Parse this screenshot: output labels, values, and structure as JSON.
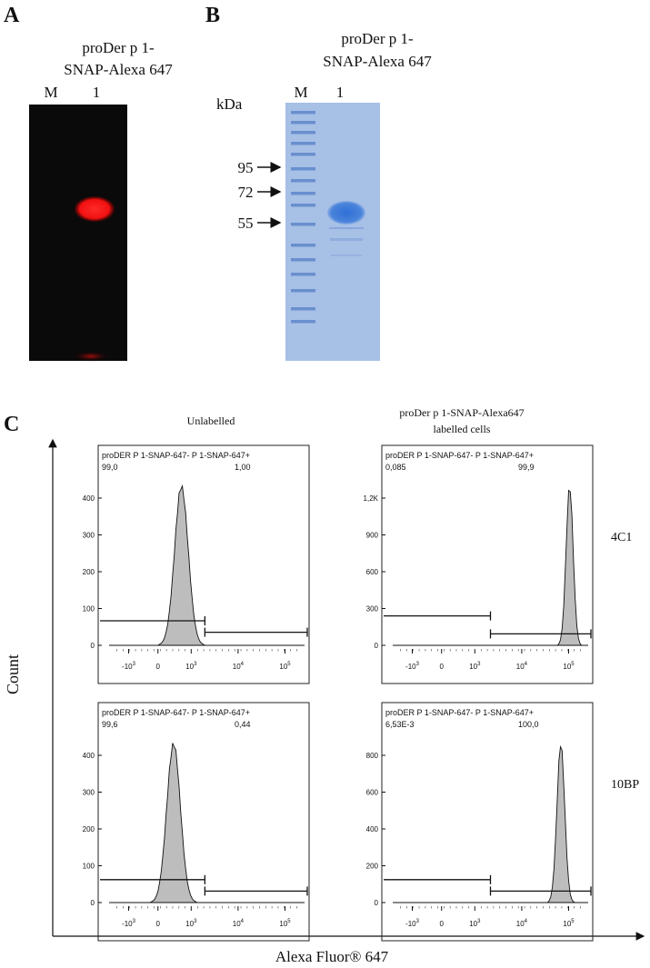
{
  "panel_a": {
    "label": "A",
    "title": [
      "proDer p 1-",
      "SNAP-Alexa 647"
    ],
    "lanes": [
      "M",
      "1"
    ]
  },
  "panel_b": {
    "label": "B",
    "title": [
      "proDer p 1-",
      "SNAP-Alexa 647"
    ],
    "lanes": [
      "M",
      "1"
    ],
    "unit": "kDa",
    "markers": [
      "95",
      "72",
      "55"
    ]
  },
  "panel_c": {
    "label": "C",
    "y_label": "Count",
    "x_label": "Alexa Fluor® 647",
    "columns": [
      [
        "Unlabelled"
      ],
      [
        "proDer p 1-SNAP-Alexa647",
        "labelled cells"
      ]
    ],
    "rows": [
      "4C1",
      "10BP"
    ],
    "x_ticks": [
      {
        "base": "-10",
        "exp": "3"
      },
      {
        "base": "0"
      },
      {
        "base": "10",
        "exp": "3"
      },
      {
        "base": "10",
        "exp": "4"
      },
      {
        "base": "10",
        "exp": "5"
      }
    ],
    "plots": [
      {
        "gate_header": "proDER P 1-SNAP-647- P 1-SNAP-647+",
        "left_pct": "99,0",
        "right_pct": "1,00",
        "y_ticks": [
          "0",
          "100",
          "200",
          "300",
          "400"
        ]
      },
      {
        "gate_header": "proDER P 1-SNAP-647- P 1-SNAP-647+",
        "left_pct": "0,085",
        "right_pct": "99,9",
        "y_ticks": [
          "0",
          "300",
          "600",
          "900",
          "1,2K"
        ]
      },
      {
        "gate_header": "proDER P 1-SNAP-647- P 1-SNAP-647+",
        "left_pct": "99,6",
        "right_pct": "0,44",
        "y_ticks": [
          "0",
          "100",
          "200",
          "300",
          "400"
        ]
      },
      {
        "gate_header": "proDER P 1-SNAP-647- P 1-SNAP-647+",
        "left_pct": "6,53E-3",
        "right_pct": "100,0",
        "y_ticks": [
          "0",
          "200",
          "400",
          "600",
          "800"
        ]
      }
    ]
  }
}
